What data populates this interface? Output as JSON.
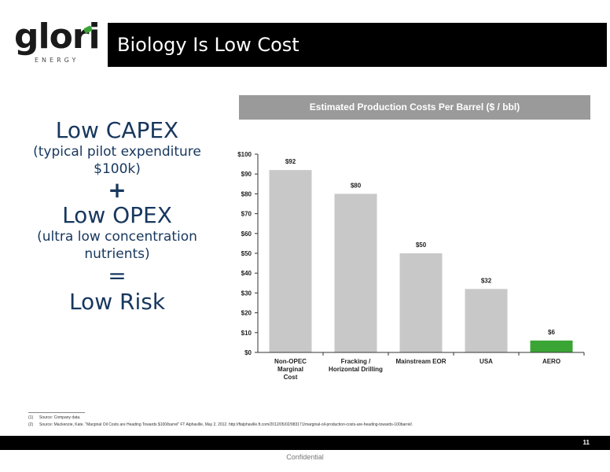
{
  "header": {
    "logo_word": "glori",
    "logo_sub": "ENERGY",
    "title": "Biology Is Low Cost"
  },
  "left_text": {
    "line1": "Low CAPEX",
    "line2": "(typical pilot expenditure",
    "line3": "$100k)",
    "plus": "+",
    "line4": "Low OPEX",
    "line5": "(ultra low concentration",
    "line6": "nutrients)",
    "equals": "=",
    "line7": "Low Risk"
  },
  "chart_data": {
    "type": "bar",
    "title": "Estimated Production Costs Per Barrel ($ / bbl)",
    "categories": [
      [
        "Non-OPEC",
        "Marginal",
        "Cost"
      ],
      [
        "Fracking /",
        "Horizontal Drilling"
      ],
      [
        "Mainstream EOR"
      ],
      [
        "USA"
      ],
      [
        "AERO"
      ]
    ],
    "values": [
      92,
      80,
      50,
      32,
      6
    ],
    "data_labels": [
      "$92",
      "$80",
      "$50",
      "$32",
      "$6"
    ],
    "ylim": [
      0,
      100
    ],
    "yticks": [
      "$0",
      "$10",
      "$20",
      "$30",
      "$40",
      "$50",
      "$60",
      "$70",
      "$80",
      "$90",
      "$100"
    ],
    "bar_colors": [
      "#c8c8c8",
      "#c8c8c8",
      "#c8c8c8",
      "#c8c8c8",
      "#3aa535"
    ],
    "legend": "none",
    "grid": false
  },
  "footnotes": [
    {
      "num": "(1)",
      "text": "Source: Company data."
    },
    {
      "num": "(2)",
      "text": "Source: Mackenzie, Kate. \"Marginal Oil Costs are Heading Towards $100/barrel\" FT Alphaville, May 2, 2012. http://ftalphaville.ft.com/2012/05/02/983171/marginal-oil-production-costs-are-heading-towards-100barrel/."
    }
  ],
  "footer": {
    "page_number": "11",
    "confidential": "Confidential"
  }
}
